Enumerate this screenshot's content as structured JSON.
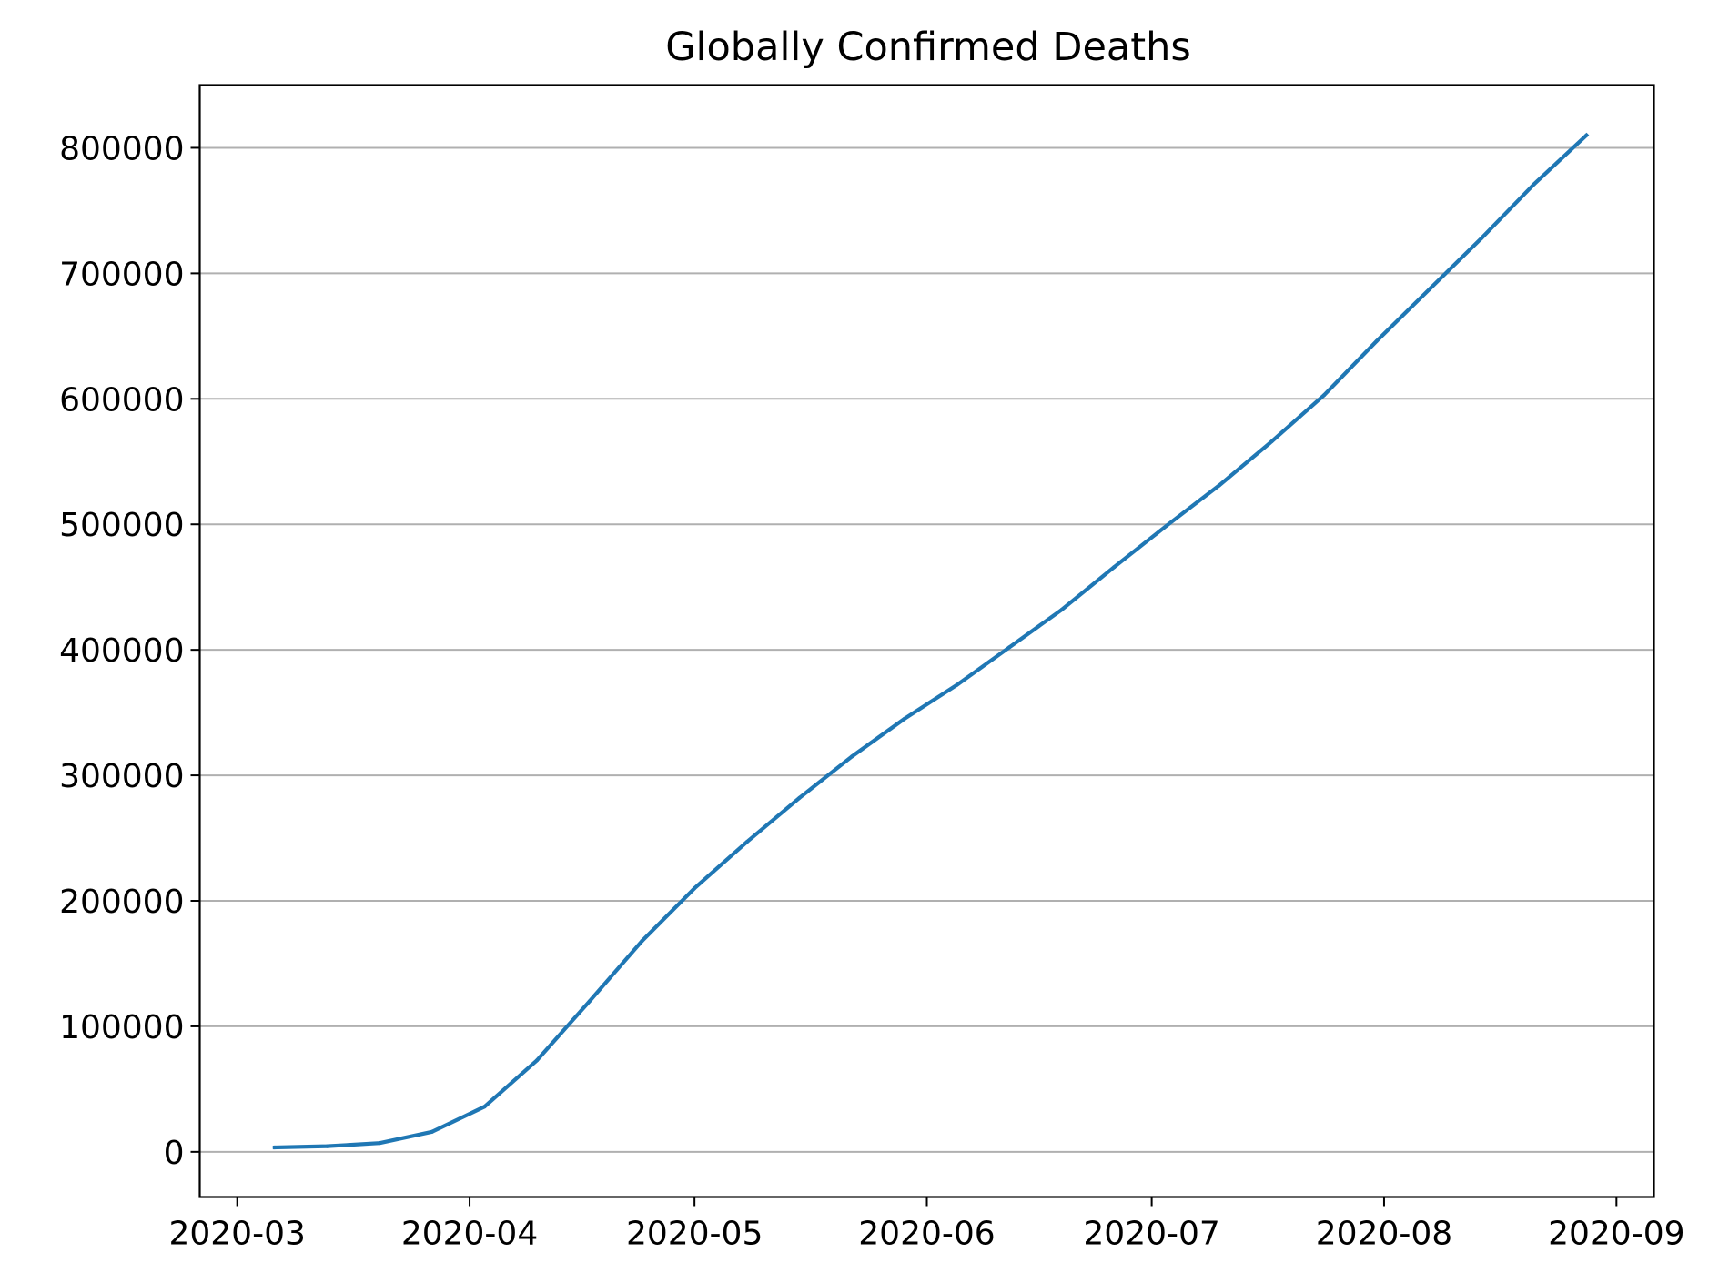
{
  "chart_data": {
    "type": "line",
    "title": "Globally Confirmed Deaths",
    "xlabel": "",
    "ylabel": "",
    "x_ticks": [
      "2020-03",
      "2020-04",
      "2020-05",
      "2020-06",
      "2020-07",
      "2020-08",
      "2020-09"
    ],
    "y_ticks": [
      "0",
      "100000",
      "200000",
      "300000",
      "400000",
      "500000",
      "600000",
      "700000",
      "800000"
    ],
    "xlim": [
      "2020-02-25",
      "2020-09-06"
    ],
    "ylim": [
      -36000,
      850000
    ],
    "grid": "y",
    "legend": "none",
    "series": [
      {
        "color": "#1f77b4",
        "points": [
          {
            "x": "2020-03-06",
            "y": 3500
          },
          {
            "x": "2020-03-13",
            "y": 4500
          },
          {
            "x": "2020-03-20",
            "y": 7000
          },
          {
            "x": "2020-03-27",
            "y": 16000
          },
          {
            "x": "2020-04-03",
            "y": 36000
          },
          {
            "x": "2020-04-10",
            "y": 73000
          },
          {
            "x": "2020-04-17",
            "y": 120000
          },
          {
            "x": "2020-04-24",
            "y": 168000
          },
          {
            "x": "2020-05-01",
            "y": 210000
          },
          {
            "x": "2020-05-08",
            "y": 247000
          },
          {
            "x": "2020-05-15",
            "y": 282000
          },
          {
            "x": "2020-05-22",
            "y": 315000
          },
          {
            "x": "2020-05-29",
            "y": 345000
          },
          {
            "x": "2020-06-05",
            "y": 372000
          },
          {
            "x": "2020-06-12",
            "y": 402000
          },
          {
            "x": "2020-06-19",
            "y": 432000
          },
          {
            "x": "2020-06-26",
            "y": 466000
          },
          {
            "x": "2020-07-03",
            "y": 499000
          },
          {
            "x": "2020-07-10",
            "y": 531000
          },
          {
            "x": "2020-07-17",
            "y": 566000
          },
          {
            "x": "2020-07-24",
            "y": 603000
          },
          {
            "x": "2020-07-31",
            "y": 646000
          },
          {
            "x": "2020-08-07",
            "y": 687000
          },
          {
            "x": "2020-08-14",
            "y": 728000
          },
          {
            "x": "2020-08-21",
            "y": 771000
          },
          {
            "x": "2020-08-28",
            "y": 810000
          }
        ]
      }
    ]
  }
}
